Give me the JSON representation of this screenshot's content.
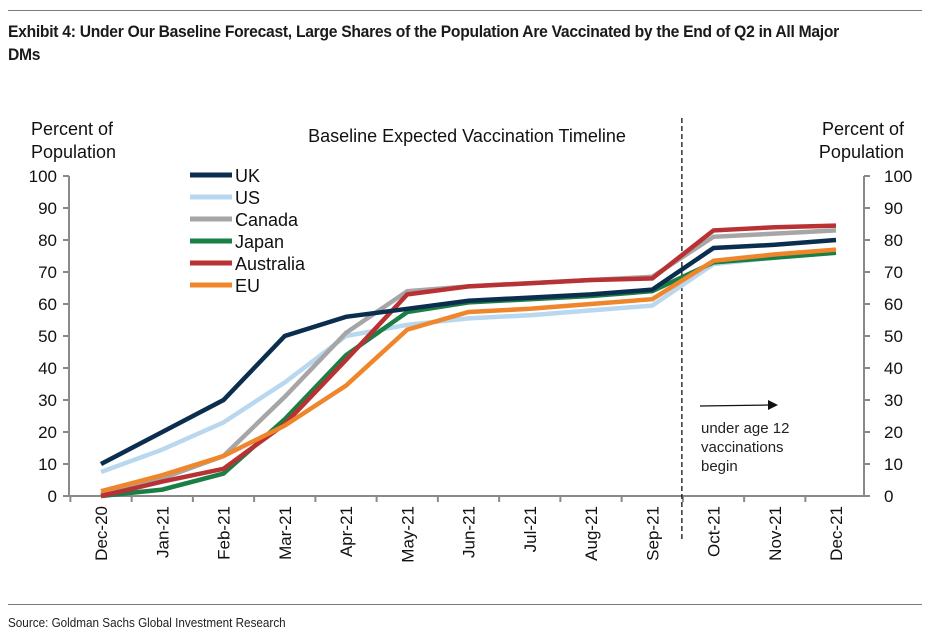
{
  "exhibit": {
    "title": "Exhibit 4: Under Our Baseline Forecast, Large Shares of the Population Are Vaccinated by the End of Q2 in All Major DMs",
    "source": "Source: Goldman Sachs Global Investment Research"
  },
  "chart_data": {
    "type": "line",
    "title": "Baseline Expected Vaccination Timeline",
    "ylabel_left": [
      "Percent of",
      "Population"
    ],
    "ylabel_right": [
      "Percent of",
      "Population"
    ],
    "xlabel": "",
    "ylim": [
      0,
      100
    ],
    "yticks": [
      0,
      10,
      20,
      30,
      40,
      50,
      60,
      70,
      80,
      90,
      100
    ],
    "grid": false,
    "legend_position": "top-left",
    "categories": [
      "Dec-20",
      "Jan-21",
      "Feb-21",
      "Mar-21",
      "Apr-21",
      "May-21",
      "Jun-21",
      "Jul-21",
      "Aug-21",
      "Sep-21",
      "Oct-21",
      "Nov-21",
      "Dec-21"
    ],
    "series": [
      {
        "name": "UK",
        "color": "#0b2e4f",
        "values": [
          10,
          20,
          30,
          50,
          56,
          58.5,
          61,
          62,
          63,
          64.5,
          77.5,
          78.5,
          80
        ]
      },
      {
        "name": "US",
        "color": "#b9d7ef",
        "values": [
          7.5,
          14.5,
          23,
          35.5,
          50,
          53.5,
          55.5,
          56.5,
          58,
          59.5,
          72.5,
          74.5,
          76
        ]
      },
      {
        "name": "Canada",
        "color": "#a6a6a6",
        "values": [
          0.5,
          5.5,
          12.5,
          31,
          51,
          64,
          65.5,
          66.5,
          67.5,
          68.5,
          81,
          82,
          83
        ]
      },
      {
        "name": "Japan",
        "color": "#1a7f45",
        "values": [
          0,
          2,
          7,
          24,
          44,
          57.5,
          60.5,
          61.5,
          62.5,
          64,
          73,
          74.5,
          76
        ]
      },
      {
        "name": "Australia",
        "color": "#b83234",
        "values": [
          0,
          4.5,
          8.5,
          22.5,
          42.5,
          63,
          65.5,
          66.5,
          67.5,
          68,
          83,
          84,
          84.5
        ]
      },
      {
        "name": "EU",
        "color": "#f0862b",
        "values": [
          1.5,
          6.5,
          12.5,
          22,
          34.5,
          52,
          57.5,
          58.5,
          60,
          61.5,
          73.5,
          75.5,
          77
        ]
      }
    ],
    "annotations": [
      {
        "type": "vertical-dashed-line",
        "between": [
          "Sep-21",
          "Oct-21"
        ]
      },
      {
        "type": "arrow",
        "direction": "right",
        "text": [
          "under age 12",
          "vaccinations",
          "begin"
        ]
      }
    ]
  }
}
